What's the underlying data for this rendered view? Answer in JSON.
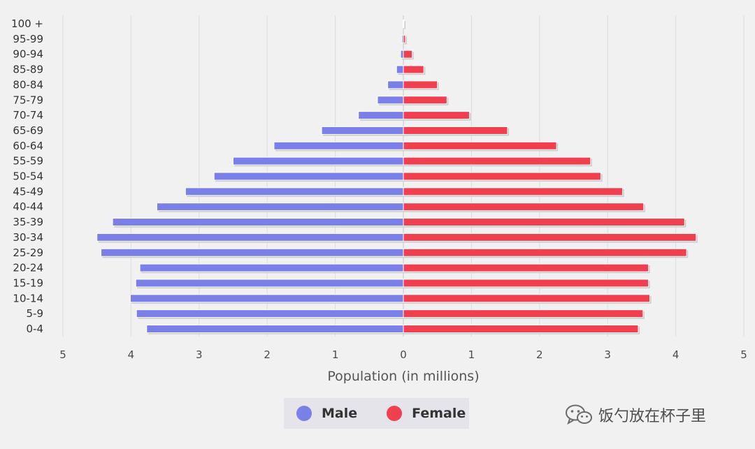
{
  "colors": {
    "male": "#7b7fe8",
    "female": "#f0404f",
    "grid": "#d9dede",
    "axis": "#bfcaca"
  },
  "chart_data": {
    "type": "bar",
    "orientation": "horizontal",
    "categories": [
      "100 +",
      "95-99",
      "90-94",
      "85-89",
      "80-84",
      "75-79",
      "70-74",
      "65-69",
      "60-64",
      "55-59",
      "50-54",
      "45-49",
      "40-44",
      "35-39",
      "30-34",
      "25-29",
      "20-24",
      "15-19",
      "10-14",
      "5-9",
      "0-4"
    ],
    "series": [
      {
        "name": "Male",
        "values": [
          0.005,
          0.02,
          0.04,
          0.1,
          0.23,
          0.38,
          0.66,
          1.2,
          1.9,
          2.5,
          2.78,
          3.2,
          3.62,
          4.27,
          4.5,
          4.44,
          3.87,
          3.93,
          4.01,
          3.92,
          3.77
        ]
      },
      {
        "name": "Female",
        "values": [
          0.01,
          0.03,
          0.13,
          0.3,
          0.5,
          0.64,
          0.97,
          1.53,
          2.25,
          2.75,
          2.9,
          3.22,
          3.53,
          4.13,
          4.3,
          4.16,
          3.6,
          3.6,
          3.62,
          3.52,
          3.45
        ]
      }
    ],
    "xlabel": "Population (in millions)",
    "xlim": [
      -5,
      5
    ],
    "xticks": [
      5,
      4,
      3,
      2,
      1,
      0,
      1,
      2,
      3,
      4,
      5
    ],
    "grid": true,
    "legend_position": "bottom"
  },
  "legend": {
    "male_label": "Male",
    "female_label": "Female"
  },
  "watermark": {
    "text": "饭勺放在杯子里",
    "icon": "wechat-icon"
  }
}
